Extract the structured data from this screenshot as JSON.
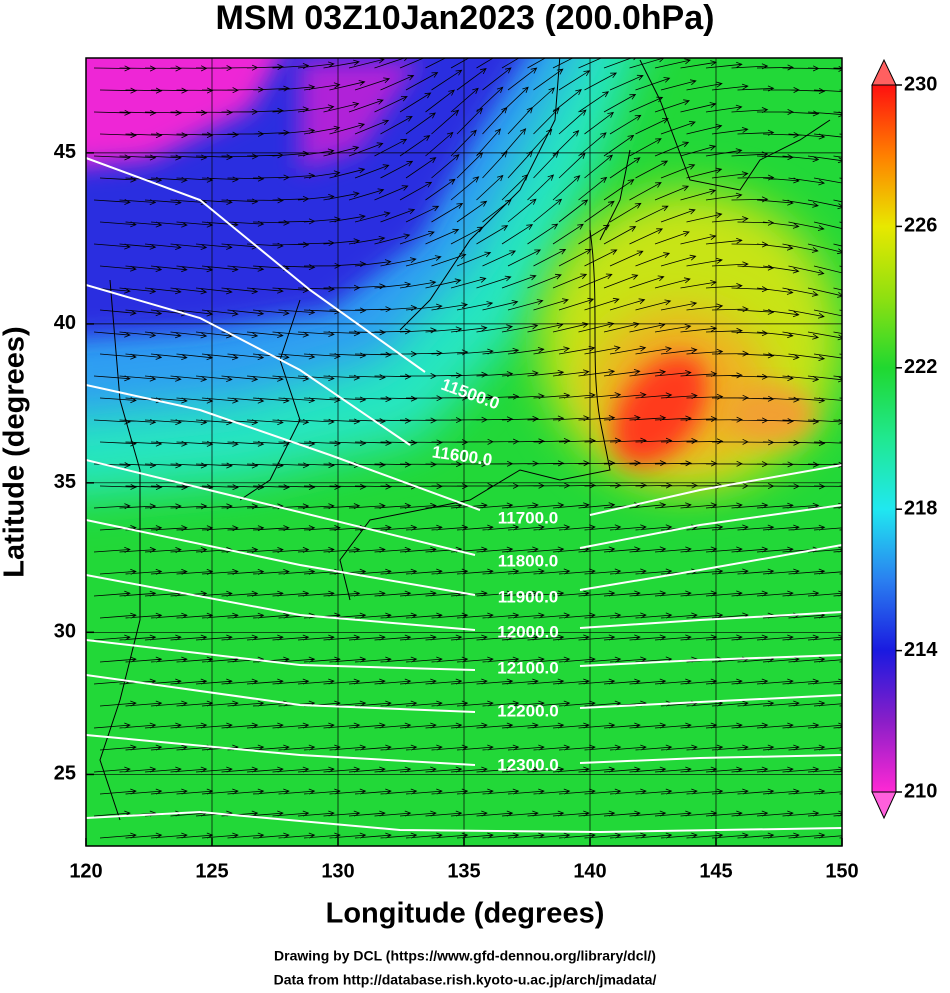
{
  "title": "MSM 03Z10Jan2023 (200.0hPa)",
  "map": {
    "projection": "mercator",
    "xlim": [
      120,
      150
    ],
    "ylim": [
      22.4,
      47.6
    ],
    "xticks": [
      120,
      125,
      130,
      135,
      140,
      145,
      150
    ],
    "yticks": [
      25,
      30,
      35,
      40,
      45
    ],
    "xlabel": "Longitude (degrees)",
    "ylabel": "Latitude  (degrees)",
    "grid": true
  },
  "colorbar": {
    "lim": [
      210,
      230
    ],
    "ticks": [
      210,
      214,
      218,
      222,
      226,
      230
    ],
    "colormap": [
      {
        "value": 210,
        "color": "#ff28d4"
      },
      {
        "value": 212,
        "color": "#8a1ec8"
      },
      {
        "value": 214,
        "color": "#1a1ae0"
      },
      {
        "value": 216,
        "color": "#2a80f0"
      },
      {
        "value": 218,
        "color": "#20e8f0"
      },
      {
        "value": 220,
        "color": "#20e890"
      },
      {
        "value": 222,
        "color": "#20d830"
      },
      {
        "value": 224,
        "color": "#90e010"
      },
      {
        "value": 226,
        "color": "#e8e800"
      },
      {
        "value": 228,
        "color": "#ff8000"
      },
      {
        "value": 230,
        "color": "#ff1010"
      }
    ]
  },
  "contours": {
    "labels": [
      "11500.0",
      "11600.0",
      "11700.0",
      "11800.0",
      "11900.0",
      "12000.0",
      "12100.0",
      "12200.0",
      "12300.0"
    ]
  },
  "credits": [
    "Drawing by DCL (https://www.gfd-dennou.org/library/dcl/)",
    "Data from http://database.rish.kyoto-u.ac.jp/arch/jmadata/"
  ]
}
